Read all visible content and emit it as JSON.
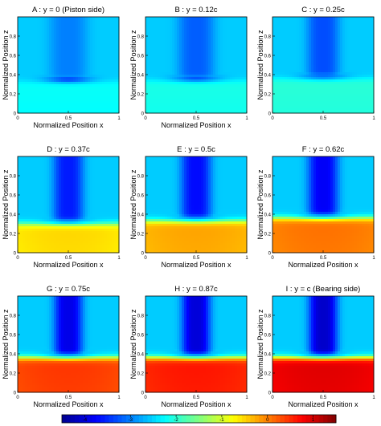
{
  "chart_data": [
    {
      "type": "heatmap",
      "title": "A : y = 0 (Piston side)",
      "xlabel": "Normalized Position x",
      "ylabel": "Normalized Position z",
      "xlim": [
        0,
        1
      ],
      "ylim": [
        0,
        1
      ],
      "x_ticks": [
        "0",
        "0.5",
        "1"
      ],
      "y_ticks": [
        "0",
        "0.2",
        "0.4",
        "0.6",
        "0.8"
      ],
      "field": {
        "band_center_x": 0.5,
        "band_width": 0.38,
        "band_min": -3.0,
        "interface_z": 0.33,
        "lower_value": -2.2,
        "trough_value": -3.9
      }
    },
    {
      "type": "heatmap",
      "title": "B : y = 0.12c",
      "xlabel": "Normalized Position x",
      "ylabel": "Normalized Position z",
      "xlim": [
        0,
        1
      ],
      "ylim": [
        0,
        1
      ],
      "x_ticks": [
        "0",
        "0.5",
        "1"
      ],
      "y_ticks": [
        "0",
        "0.2",
        "0.4",
        "0.6",
        "0.8"
      ],
      "field": {
        "band_center_x": 0.5,
        "band_width": 0.36,
        "band_min": -3.2,
        "interface_z": 0.34,
        "lower_value": -2.1,
        "trough_value": -3.8
      }
    },
    {
      "type": "heatmap",
      "title": "C : y = 0.25c",
      "xlabel": "",
      "ylabel": "Normalized Position z",
      "xlim": [
        0,
        1
      ],
      "ylim": [
        0,
        1
      ],
      "x_ticks": [
        "0",
        "0.5",
        "1"
      ],
      "y_ticks": [
        "0",
        "0.2",
        "0.4",
        "0.6",
        "0.8"
      ],
      "field": {
        "band_center_x": 0.5,
        "band_width": 0.32,
        "band_min": -3.3,
        "interface_z": 0.36,
        "lower_value": -2.0,
        "trough_value": -3.6
      }
    },
    {
      "type": "heatmap",
      "title": "D : y = 0.37c",
      "xlabel": "Normalized Position x",
      "ylabel": "Normalized Position z",
      "xlim": [
        0,
        1
      ],
      "ylim": [
        0,
        1
      ],
      "x_ticks": [
        "0",
        "0.5",
        "1"
      ],
      "y_ticks": [
        "0",
        "0.2",
        "0.4",
        "0.6",
        "0.8"
      ],
      "field": {
        "band_center_x": 0.5,
        "band_width": 0.3,
        "band_min": -3.6,
        "interface_z": 0.3,
        "lower_value": -0.6,
        "trough_value": -3.6
      }
    },
    {
      "type": "heatmap",
      "title": "E : y = 0.5c",
      "xlabel": "Normalized Position x",
      "ylabel": "Normalized Position z",
      "xlim": [
        0,
        1
      ],
      "ylim": [
        0,
        1
      ],
      "x_ticks": [
        "0",
        "0.5",
        "1"
      ],
      "y_ticks": [
        "0",
        "0.2",
        "0.4",
        "0.6",
        "0.8"
      ],
      "field": {
        "band_center_x": 0.5,
        "band_width": 0.3,
        "band_min": -3.7,
        "interface_z": 0.33,
        "lower_value": -0.3,
        "trough_value": -3.7
      }
    },
    {
      "type": "heatmap",
      "title": "F : y = 0.62c",
      "xlabel": "Normalized Position x",
      "ylabel": "Normalized Position z",
      "xlim": [
        0,
        1
      ],
      "ylim": [
        0,
        1
      ],
      "x_ticks": [
        "0",
        "0.5",
        "1"
      ],
      "y_ticks": [
        "0",
        "0.2",
        "0.4",
        "0.6",
        "0.8"
      ],
      "field": {
        "band_center_x": 0.5,
        "band_width": 0.3,
        "band_min": -3.8,
        "interface_z": 0.36,
        "lower_value": 0.0,
        "trough_value": -3.8
      }
    },
    {
      "type": "heatmap",
      "title": "G : y = 0.75c",
      "xlabel": "Normalized Position x",
      "ylabel": "Normalized Position z",
      "xlim": [
        0,
        1
      ],
      "ylim": [
        0,
        1
      ],
      "x_ticks": [
        "0",
        "0.5",
        "1"
      ],
      "y_ticks": [
        "0",
        "0.2",
        "0.4",
        "0.6",
        "0.8"
      ],
      "field": {
        "band_center_x": 0.5,
        "band_width": 0.28,
        "band_min": -3.9,
        "interface_z": 0.36,
        "lower_value": 0.35,
        "trough_value": -3.9
      }
    },
    {
      "type": "heatmap",
      "title": "H : y = 0.87c",
      "xlabel": "Normalized Position x",
      "ylabel": "Normalized Position z",
      "xlim": [
        0,
        1
      ],
      "ylim": [
        0,
        1
      ],
      "x_ticks": [
        "0",
        "0.5",
        "1"
      ],
      "y_ticks": [
        "0",
        "0.2",
        "0.4",
        "0.6",
        "0.8"
      ],
      "field": {
        "band_center_x": 0.5,
        "band_width": 0.28,
        "band_min": -4.0,
        "interface_z": 0.36,
        "lower_value": 0.55,
        "trough_value": -4.0
      }
    },
    {
      "type": "heatmap",
      "title": "I : y = c (Bearing side)",
      "xlabel": "Normalized Position x",
      "ylabel": "Normalized Position z",
      "xlim": [
        0,
        1
      ],
      "ylim": [
        0,
        1
      ],
      "x_ticks": [
        "0",
        "0.5",
        "1"
      ],
      "y_ticks": [
        "0",
        "0.2",
        "0.4",
        "0.6",
        "0.8"
      ],
      "field": {
        "band_center_x": 0.5,
        "band_width": 0.28,
        "band_min": -4.1,
        "interface_z": 0.36,
        "lower_value": 0.85,
        "trough_value": -4.1
      }
    }
  ],
  "colorbar": {
    "type": "colorbar",
    "range": [
      -4.5,
      1.5
    ],
    "colormap": "jet",
    "ticks": [
      "-4",
      "-3",
      "-2",
      "-1",
      "0",
      "1"
    ]
  },
  "colors": {
    "jet_stops": [
      "#00008f",
      "#0000ff",
      "#00ffff",
      "#ffff00",
      "#ff0000",
      "#800000"
    ]
  }
}
